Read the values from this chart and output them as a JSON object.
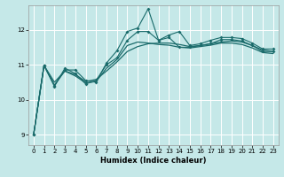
{
  "title": "",
  "xlabel": "Humidex (Indice chaleur)",
  "background_color": "#c5e8e8",
  "grid_color": "#ffffff",
  "line_color": "#1a6b6b",
  "xlim": [
    -0.5,
    23.5
  ],
  "ylim": [
    8.7,
    12.7
  ],
  "yticks": [
    9,
    10,
    11,
    12
  ],
  "xticks": [
    0,
    1,
    2,
    3,
    4,
    5,
    6,
    7,
    8,
    9,
    10,
    11,
    12,
    13,
    14,
    15,
    16,
    17,
    18,
    19,
    20,
    21,
    22,
    23
  ],
  "line1_x": [
    0,
    1,
    2,
    3,
    4,
    5,
    6,
    7,
    8,
    9,
    10,
    11,
    12,
    13,
    14,
    15,
    16,
    17,
    18,
    19,
    20,
    21,
    22,
    23
  ],
  "line1_y": [
    9.0,
    10.98,
    10.4,
    10.85,
    10.85,
    10.55,
    10.5,
    11.05,
    11.4,
    11.95,
    12.05,
    12.6,
    11.7,
    11.85,
    11.95,
    11.55,
    11.6,
    11.7,
    11.78,
    11.78,
    11.75,
    11.62,
    11.45,
    11.45
  ],
  "line2_x": [
    0,
    1,
    2,
    3,
    4,
    5,
    6,
    7,
    8,
    9,
    10,
    11,
    12,
    13,
    14,
    15,
    16,
    17,
    18,
    19,
    20,
    21,
    22,
    23
  ],
  "line2_y": [
    9.0,
    10.98,
    10.38,
    10.9,
    10.75,
    10.45,
    10.55,
    11.0,
    11.2,
    11.7,
    11.95,
    11.95,
    11.7,
    11.78,
    11.5,
    11.5,
    11.55,
    11.6,
    11.72,
    11.72,
    11.68,
    11.55,
    11.38,
    11.38
  ],
  "line3_x": [
    0,
    1,
    2,
    3,
    4,
    5,
    6,
    7,
    8,
    9,
    10,
    11,
    12,
    13,
    14,
    15,
    16,
    17,
    18,
    19,
    20,
    21,
    22,
    23
  ],
  "line3_y": [
    9.0,
    10.98,
    10.5,
    10.82,
    10.72,
    10.52,
    10.58,
    10.82,
    11.08,
    11.38,
    11.52,
    11.6,
    11.62,
    11.62,
    11.58,
    11.52,
    11.55,
    11.6,
    11.65,
    11.68,
    11.65,
    11.55,
    11.42,
    11.38
  ],
  "line4_x": [
    0,
    1,
    2,
    3,
    4,
    5,
    6,
    7,
    8,
    9,
    10,
    11,
    12,
    13,
    14,
    15,
    16,
    17,
    18,
    19,
    20,
    21,
    22,
    23
  ],
  "line4_y": [
    9.0,
    10.98,
    10.42,
    10.82,
    10.68,
    10.48,
    10.52,
    10.9,
    11.15,
    11.55,
    11.65,
    11.62,
    11.58,
    11.56,
    11.5,
    11.48,
    11.52,
    11.56,
    11.62,
    11.62,
    11.58,
    11.48,
    11.35,
    11.32
  ]
}
